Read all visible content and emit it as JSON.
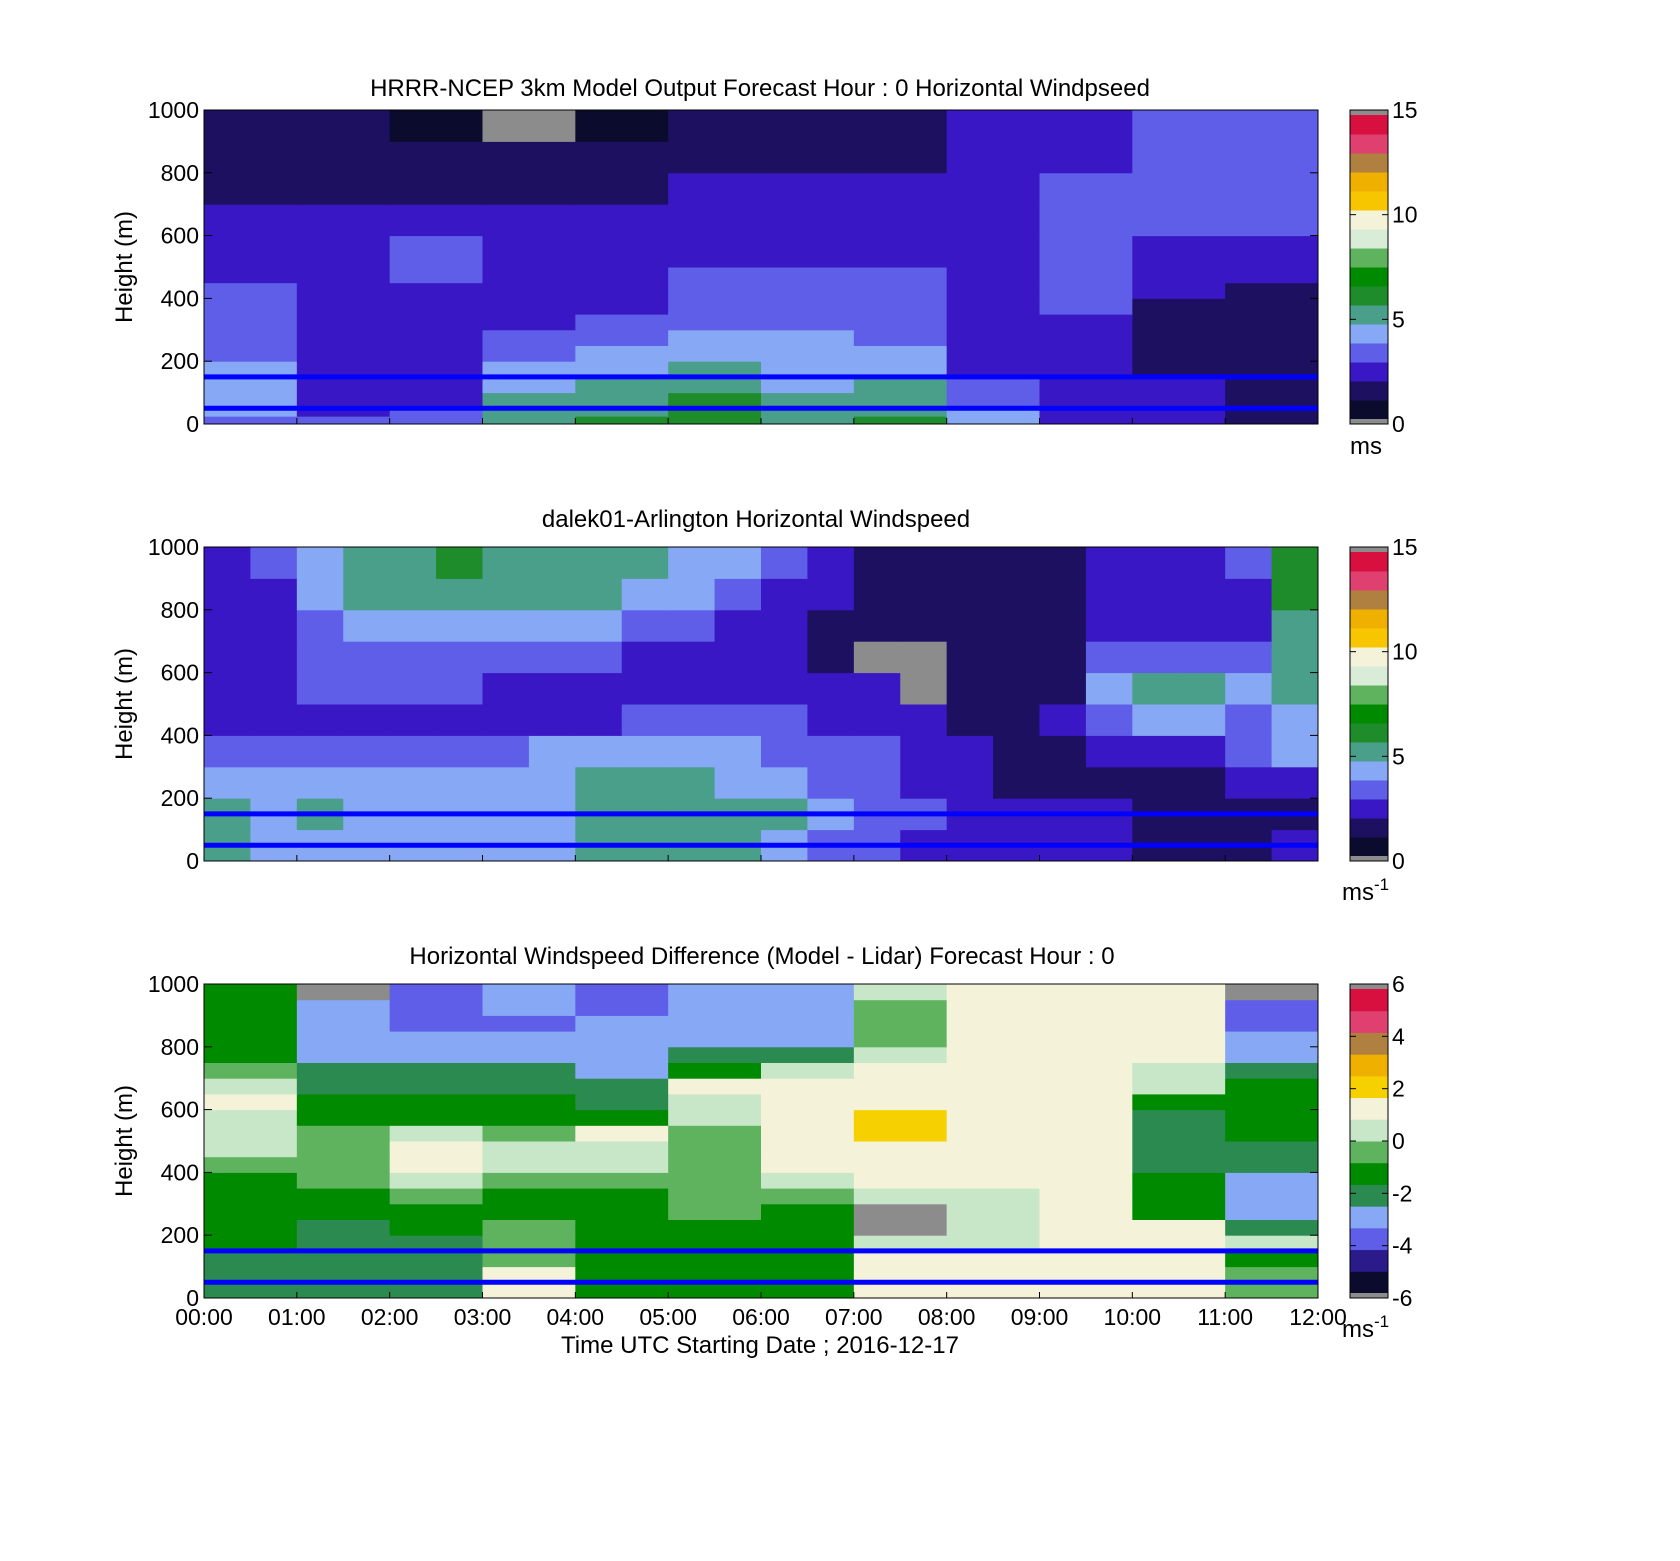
{
  "figure": {
    "xlabel": "Time UTC  Starting Date ; 2016-12-17",
    "x_tick_labels": [
      "00:00",
      "01:00",
      "02:00",
      "03:00",
      "04:00",
      "05:00",
      "06:00",
      "07:00",
      "08:00",
      "09:00",
      "10:00",
      "11:00",
      "12:00"
    ]
  },
  "colors": {
    "reference_line": "#0000ff",
    "missing_data": "#8c8c8c",
    "speed_colormap": [
      "#0b0b2e",
      "#1d1060",
      "#3a17c4",
      "#5f5ee8",
      "#86a8f5",
      "#4a9f8a",
      "#1f8c2b",
      "#008a00",
      "#5fb35f",
      "#d8ecd8",
      "#f4f2d8",
      "#f7c600",
      "#f0b000",
      "#b08040",
      "#e04070",
      "#d81040"
    ],
    "diff_colormap": [
      "#0b0b2e",
      "#2a1a8a",
      "#5f5ee8",
      "#86a8f5",
      "#2a8a50",
      "#008a00",
      "#5fb35f",
      "#c8e6c8",
      "#f4f2d8",
      "#f7d000",
      "#f0b000",
      "#b08040",
      "#e04070",
      "#d81040"
    ]
  },
  "chart_data": [
    {
      "type": "heatmap",
      "title": "HRRR-NCEP 3km Model Output   Forecast Hour : 0 Horizontal Windpseed",
      "ylabel": "Height (m)",
      "ylim": [
        0,
        1000
      ],
      "y_ticks": [
        0,
        200,
        400,
        600,
        800,
        1000
      ],
      "xlim": [
        0,
        12
      ],
      "colorbar": {
        "ticks": [
          0,
          5,
          10,
          15
        ],
        "label": "ms",
        "range": [
          0,
          15
        ]
      },
      "reference_lines_m": [
        50,
        150
      ],
      "x_bins_hours": [
        0,
        1,
        2,
        3,
        4,
        5,
        6,
        7,
        8,
        9,
        10,
        11
      ],
      "y_bins_m": [
        0,
        25,
        50,
        75,
        100,
        150,
        200,
        250,
        300,
        350,
        400,
        450,
        500,
        600,
        700,
        800,
        900,
        1000
      ],
      "values": [
        [
          3.5,
          3.0,
          3.5,
          5.5,
          6.0,
          6.0,
          5.5,
          6.0,
          4.0,
          2.5,
          2.0,
          1.5
        ],
        [
          4.0,
          2.5,
          3.0,
          5.0,
          5.5,
          6.5,
          5.5,
          5.5,
          4.0,
          2.5,
          2.0,
          1.5
        ],
        [
          4.0,
          2.5,
          2.5,
          5.0,
          5.5,
          6.0,
          5.0,
          5.5,
          3.5,
          2.5,
          2.0,
          1.5
        ],
        [
          4.0,
          2.5,
          2.5,
          5.0,
          5.0,
          6.0,
          5.0,
          5.5,
          3.5,
          2.5,
          2.0,
          1.5
        ],
        [
          4.0,
          2.5,
          2.5,
          4.5,
          5.0,
          5.5,
          4.5,
          5.0,
          3.0,
          2.5,
          2.0,
          1.5
        ],
        [
          4.0,
          2.5,
          2.5,
          4.0,
          4.0,
          5.0,
          4.5,
          4.5,
          2.5,
          2.5,
          1.5,
          1.5
        ],
        [
          3.5,
          2.5,
          2.5,
          3.5,
          4.0,
          4.5,
          4.0,
          4.0,
          2.5,
          2.5,
          1.5,
          1.5
        ],
        [
          3.5,
          2.5,
          2.5,
          3.0,
          3.0,
          4.0,
          4.0,
          3.5,
          2.5,
          2.5,
          1.5,
          1.5
        ],
        [
          3.0,
          2.5,
          2.5,
          2.5,
          3.0,
          3.5,
          3.5,
          3.0,
          2.5,
          2.5,
          1.5,
          1.5
        ],
        [
          3.0,
          2.5,
          2.5,
          2.5,
          2.5,
          3.0,
          3.0,
          3.0,
          2.5,
          3.5,
          1.5,
          1.5
        ],
        [
          3.0,
          2.5,
          2.5,
          2.5,
          2.5,
          3.0,
          3.0,
          3.0,
          2.5,
          3.5,
          2.0,
          1.5
        ],
        [
          2.5,
          2.5,
          3.0,
          2.5,
          2.5,
          3.0,
          3.0,
          3.0,
          2.5,
          3.5,
          2.0,
          2.0
        ],
        [
          2.5,
          2.5,
          3.0,
          2.5,
          2.5,
          2.5,
          2.5,
          2.5,
          2.5,
          3.5,
          2.5,
          2.5
        ],
        [
          2.0,
          2.0,
          2.5,
          2.5,
          2.5,
          2.5,
          2.5,
          2.5,
          2.5,
          3.0,
          3.0,
          3.0
        ],
        [
          1.5,
          1.5,
          1.5,
          1.5,
          1.5,
          2.0,
          2.0,
          2.0,
          2.5,
          3.0,
          3.0,
          3.5
        ],
        [
          1.5,
          1.0,
          1.0,
          1.0,
          1.0,
          1.5,
          1.5,
          1.5,
          2.0,
          2.5,
          3.0,
          3.5
        ],
        [
          1.5,
          1.0,
          0.5,
          null,
          0.5,
          1.5,
          1.5,
          1.5,
          2.0,
          2.5,
          3.0,
          3.5
        ],
        [
          1.5,
          1.5,
          1.0,
          1.0,
          1.0,
          null,
          1.0,
          null,
          2.0,
          2.5,
          3.5,
          4.5
        ]
      ]
    },
    {
      "type": "heatmap",
      "title": "dalek01-Arlington  Horizontal Windspeed",
      "ylabel": "Height (m)",
      "ylim": [
        0,
        1000
      ],
      "y_ticks": [
        0,
        200,
        400,
        600,
        800,
        1000
      ],
      "xlim": [
        0,
        12
      ],
      "colorbar": {
        "ticks": [
          0,
          5,
          10,
          15
        ],
        "label": "ms",
        "label_superscript": "-1",
        "range": [
          0,
          15
        ]
      },
      "reference_lines_m": [
        50,
        150
      ],
      "x_bins_hours": [
        0,
        0.5,
        1,
        1.5,
        2,
        2.5,
        3,
        3.5,
        4,
        4.5,
        5,
        5.5,
        6,
        6.5,
        7,
        7.5,
        8,
        8.5,
        9,
        9.5,
        10,
        10.5,
        11,
        11.5
      ],
      "y_bins_m": [
        0,
        100,
        200,
        300,
        400,
        500,
        600,
        700,
        800,
        900
      ],
      "values": [
        [
          5.0,
          4.5,
          4.0,
          4.0,
          4.0,
          4.0,
          4.0,
          4.0,
          5.0,
          5.5,
          5.5,
          5.0,
          4.0,
          3.5,
          3.0,
          2.5,
          2.0,
          2.0,
          2.0,
          2.0,
          1.5,
          1.5,
          1.5,
          2.0
        ],
        [
          5.5,
          4.5,
          5.0,
          4.5,
          4.0,
          4.0,
          4.0,
          4.0,
          5.5,
          5.5,
          5.5,
          5.5,
          5.0,
          4.0,
          3.5,
          3.0,
          2.5,
          2.0,
          2.0,
          2.0,
          1.5,
          1.5,
          1.5,
          1.5
        ],
        [
          4.0,
          4.0,
          4.5,
          4.0,
          4.0,
          4.0,
          4.0,
          4.5,
          5.0,
          5.5,
          5.0,
          4.5,
          4.0,
          3.5,
          3.5,
          2.5,
          2.0,
          1.5,
          1.5,
          1.5,
          1.5,
          1.5,
          2.0,
          2.5
        ],
        [
          3.0,
          3.5,
          3.5,
          3.5,
          3.0,
          3.0,
          3.5,
          4.0,
          4.5,
          4.5,
          4.0,
          4.0,
          3.5,
          3.5,
          3.0,
          2.5,
          2.0,
          1.5,
          1.5,
          2.0,
          2.5,
          2.0,
          3.5,
          4.0
        ],
        [
          2.5,
          2.5,
          2.5,
          2.5,
          2.5,
          2.5,
          2.5,
          2.5,
          2.5,
          3.0,
          3.5,
          3.5,
          3.0,
          2.5,
          2.5,
          2.0,
          1.5,
          1.5,
          2.0,
          3.5,
          4.0,
          4.5,
          3.5,
          4.0
        ],
        [
          2.0,
          2.5,
          3.0,
          3.0,
          3.0,
          3.0,
          2.5,
          2.0,
          2.0,
          2.5,
          2.5,
          2.5,
          2.5,
          2.0,
          2.0,
          null,
          1.0,
          1.0,
          1.5,
          4.5,
          5.0,
          5.0,
          4.0,
          5.0
        ],
        [
          2.0,
          2.5,
          3.5,
          3.5,
          3.5,
          3.5,
          3.5,
          3.0,
          3.0,
          2.5,
          2.5,
          2.5,
          2.0,
          1.5,
          null,
          null,
          1.0,
          1.0,
          1.5,
          3.0,
          3.5,
          3.5,
          3.0,
          5.5
        ],
        [
          2.0,
          2.5,
          3.5,
          4.5,
          4.0,
          4.0,
          4.0,
          4.0,
          4.0,
          3.5,
          3.0,
          2.5,
          2.0,
          1.5,
          1.0,
          1.0,
          1.0,
          1.0,
          1.5,
          2.0,
          2.5,
          2.5,
          2.5,
          5.5
        ],
        [
          2.0,
          2.5,
          4.0,
          5.0,
          5.0,
          5.0,
          5.0,
          5.0,
          5.0,
          4.5,
          4.0,
          3.5,
          2.5,
          2.0,
          1.0,
          1.0,
          1.0,
          1.0,
          1.5,
          2.0,
          2.0,
          2.0,
          2.5,
          6.0
        ],
        [
          2.5,
          3.0,
          4.0,
          5.5,
          5.5,
          6.0,
          5.5,
          5.5,
          5.5,
          5.0,
          4.5,
          4.0,
          3.0,
          2.0,
          1.0,
          1.0,
          1.0,
          1.0,
          1.5,
          2.0,
          2.0,
          2.0,
          3.0,
          6.5
        ]
      ]
    },
    {
      "type": "heatmap",
      "title": "Horizontal Windspeed Difference (Model - Lidar) Forecast Hour : 0",
      "ylabel": "Height (m)",
      "xlabel": "Time UTC  Starting Date ; 2016-12-17",
      "ylim": [
        0,
        1000
      ],
      "y_ticks": [
        0,
        200,
        400,
        600,
        800,
        1000
      ],
      "xlim": [
        0,
        12
      ],
      "colorbar": {
        "ticks": [
          -6,
          -4,
          -2,
          0,
          2,
          4,
          6
        ],
        "label": "ms",
        "label_superscript": "-1",
        "range": [
          -6,
          6
        ]
      },
      "reference_lines_m": [
        50,
        150
      ],
      "x_bins_hours": [
        0,
        1,
        2,
        3,
        4,
        5,
        6,
        7,
        8,
        9,
        10,
        11
      ],
      "y_bins_m": [
        0,
        50,
        100,
        150,
        200,
        250,
        300,
        350,
        400,
        450,
        500,
        550,
        600,
        650,
        700,
        750,
        800,
        850,
        900,
        950
      ],
      "values": [
        [
          -2.0,
          -2.5,
          -2.0,
          1.0,
          -1.5,
          -1.5,
          -1.0,
          1.0,
          1.0,
          1.0,
          1.0,
          -0.5
        ],
        [
          -2.0,
          -2.5,
          -2.0,
          1.0,
          -1.5,
          -1.5,
          -1.0,
          1.0,
          1.0,
          1.0,
          1.0,
          -0.5
        ],
        [
          -2.0,
          -2.5,
          -2.0,
          -0.5,
          -1.5,
          -1.5,
          -1.0,
          1.0,
          1.0,
          1.0,
          1.0,
          -1.0
        ],
        [
          -1.5,
          -2.5,
          -2.0,
          -0.5,
          -1.5,
          -1.0,
          -1.0,
          0.5,
          0.5,
          1.0,
          1.0,
          0.0
        ],
        [
          -1.5,
          -2.0,
          -1.5,
          -0.5,
          -1.5,
          -1.0,
          -1.0,
          null,
          0.0,
          1.0,
          1.0,
          -2.5
        ],
        [
          -1.5,
          -1.5,
          -1.0,
          -1.0,
          -1.0,
          -0.5,
          -1.0,
          null,
          0.0,
          1.5,
          -1.0,
          -3.0
        ],
        [
          -1.0,
          -1.0,
          -0.5,
          -1.0,
          -1.0,
          -0.5,
          -0.5,
          0.5,
          0.5,
          1.5,
          -1.0,
          -3.0
        ],
        [
          -1.0,
          -0.5,
          0.5,
          -0.5,
          -0.5,
          -0.5,
          0.5,
          1.5,
          1.0,
          1.5,
          -1.5,
          -3.0
        ],
        [
          -0.5,
          -0.5,
          1.0,
          0.0,
          0.5,
          -0.5,
          1.0,
          1.5,
          1.5,
          1.5,
          -2.0,
          -2.5
        ],
        [
          0.0,
          -0.5,
          1.0,
          0.0,
          0.5,
          -0.5,
          1.0,
          1.5,
          1.5,
          1.5,
          -2.5,
          -2.0
        ],
        [
          0.5,
          -0.5,
          0.0,
          -0.5,
          1.0,
          -0.5,
          1.5,
          2.0,
          1.5,
          1.5,
          -2.5,
          -1.5
        ],
        [
          0.5,
          -1.0,
          -1.0,
          -1.0,
          -1.0,
          0.0,
          1.5,
          2.0,
          1.5,
          1.0,
          -2.0,
          -1.5
        ],
        [
          1.0,
          -1.5,
          -1.5,
          -1.5,
          -2.0,
          0.5,
          1.5,
          1.5,
          1.5,
          1.0,
          -1.5,
          -1.5
        ],
        [
          0.5,
          -2.0,
          -2.5,
          -2.5,
          -2.5,
          1.0,
          1.0,
          1.5,
          1.5,
          1.0,
          0.0,
          -1.5
        ],
        [
          -0.5,
          -2.5,
          -2.5,
          -2.5,
          -3.0,
          -1.5,
          0.0,
          1.0,
          1.5,
          1.0,
          0.5,
          -2.5
        ],
        [
          -1.0,
          -3.0,
          -3.0,
          -3.0,
          -3.0,
          -2.5,
          -2.0,
          0.5,
          1.0,
          1.0,
          1.0,
          -3.0
        ],
        [
          -1.5,
          -3.0,
          -3.0,
          -3.0,
          -3.0,
          -3.0,
          -3.0,
          -0.5,
          1.0,
          1.0,
          1.0,
          -3.0
        ],
        [
          -1.5,
          -3.0,
          -4.0,
          -3.5,
          -3.0,
          -3.0,
          -3.0,
          -0.5,
          1.0,
          1.0,
          1.0,
          -3.5
        ],
        [
          -1.5,
          -3.0,
          -4.0,
          -3.0,
          -3.5,
          -3.0,
          -3.0,
          -0.5,
          1.0,
          1.0,
          1.0,
          -3.5
        ],
        [
          -1.5,
          null,
          -3.5,
          -3.0,
          -3.5,
          -3.0,
          -3.0,
          0.0,
          1.0,
          1.0,
          1.0,
          null
        ]
      ]
    }
  ]
}
